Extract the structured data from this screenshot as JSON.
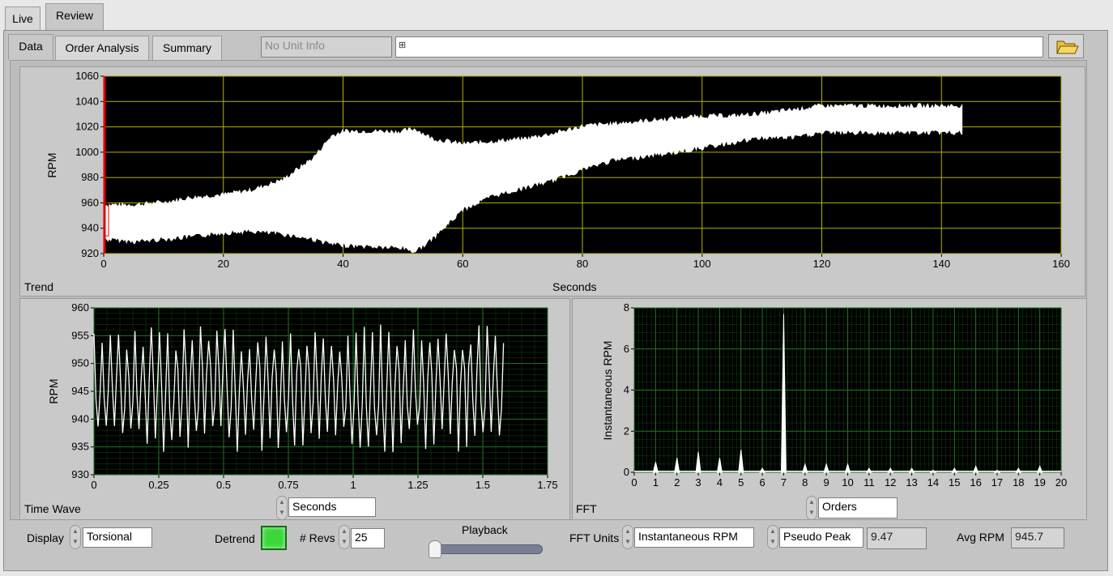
{
  "top_tabs": [
    {
      "label": "Live"
    },
    {
      "label": "Review"
    }
  ],
  "sub_tabs": [
    {
      "label": "Data"
    },
    {
      "label": "Order Analysis"
    },
    {
      "label": "Summary"
    }
  ],
  "unit_info": "No Unit Info",
  "path_value": "",
  "folder_icon": "folder-open-icon",
  "trend": {
    "caption": "Trend",
    "xlabel": "Seconds",
    "ylabel": "RPM",
    "xticks": [
      "0",
      "20",
      "40",
      "60",
      "80",
      "100",
      "120",
      "140",
      "160"
    ],
    "yticks": [
      "920",
      "940",
      "960",
      "980",
      "1000",
      "1020",
      "1040",
      "1060"
    ]
  },
  "timewave": {
    "caption": "Time Wave",
    "ylabel": "RPM",
    "xticks": [
      "0",
      "0.25",
      "0.5",
      "0.75",
      "1",
      "1.25",
      "1.5",
      "1.75"
    ],
    "yticks": [
      "930",
      "935",
      "940",
      "945",
      "950",
      "955",
      "960"
    ],
    "x_units": "Seconds"
  },
  "fft": {
    "caption": "FFT",
    "ylabel": "Instantaneous RPM",
    "xticks": [
      "0",
      "1",
      "2",
      "3",
      "4",
      "5",
      "6",
      "7",
      "8",
      "9",
      "10",
      "11",
      "12",
      "13",
      "14",
      "15",
      "16",
      "17",
      "18",
      "19",
      "20"
    ],
    "yticks": [
      "0",
      "2",
      "4",
      "6",
      "8"
    ],
    "x_units": "Orders"
  },
  "controls": {
    "display_label": "Display",
    "display_value": "Torsional",
    "detrend_label": "Detrend",
    "detrend_on": true,
    "revs_label": "# Revs",
    "revs_value": "25",
    "playback_label": "Playback",
    "fft_units_label": "FFT Units",
    "fft_units_value": "Instantaneous RPM",
    "peak_mode": "Pseudo Peak",
    "peak_value": "9.47",
    "avg_rpm_label": "Avg RPM",
    "avg_rpm_value": "945.7"
  },
  "colors": {
    "plot_bg": "#000000",
    "trend_grid": "#b4b400",
    "small_grid": "#1f7a1f",
    "trace": "#ffffff",
    "cursor": "#e00000",
    "led": "#33dd33"
  },
  "chart_data": [
    {
      "type": "area",
      "title": "",
      "xlabel": "Seconds",
      "ylabel": "RPM",
      "xlim": [
        0,
        160
      ],
      "ylim": [
        920,
        1060
      ],
      "grid": true,
      "x": [
        0,
        5,
        10,
        15,
        20,
        25,
        30,
        35,
        38,
        40,
        45,
        50,
        52,
        55,
        60,
        65,
        70,
        75,
        80,
        85,
        90,
        95,
        100,
        105,
        110,
        115,
        120,
        125,
        130,
        135,
        140,
        143.5
      ],
      "series": [
        {
          "name": "",
          "values": [
            958,
            958,
            960,
            964,
            966,
            970,
            978,
            995,
            1012,
            1016,
            1016,
            1016,
            1018,
            1010,
            1006,
            1008,
            1010,
            1014,
            1020,
            1022,
            1024,
            1026,
            1028,
            1028,
            1030,
            1033,
            1036,
            1036,
            1036,
            1036,
            1036,
            1036
          ]
        },
        {
          "name": "",
          "values": [
            932,
            930,
            932,
            934,
            937,
            938,
            936,
            932,
            928,
            927,
            926,
            925,
            922,
            932,
            955,
            966,
            972,
            978,
            987,
            994,
            997,
            1000,
            1004,
            1008,
            1012,
            1012,
            1016,
            1016,
            1016,
            1016,
            1016,
            1016
          ]
        }
      ]
    },
    {
      "type": "line",
      "title": "",
      "xlabel": "Seconds",
      "ylabel": "RPM",
      "xlim": [
        0,
        1.75
      ],
      "ylim": [
        930,
        960
      ],
      "grid": true,
      "series": [
        {
          "name": "",
          "cycles": 50,
          "duration": 1.58,
          "max": 957,
          "min": 934,
          "mean": 945.7
        }
      ]
    },
    {
      "type": "bar",
      "title": "",
      "xlabel": "",
      "ylabel": "Instantaneous RPM",
      "xlim": [
        0,
        20
      ],
      "ylim": [
        0,
        8
      ],
      "grid": true,
      "x": [
        1,
        2,
        3,
        4,
        5,
        6,
        7,
        8,
        9,
        10,
        11,
        12,
        13,
        14,
        15,
        16,
        17,
        18,
        19
      ],
      "values": [
        0.5,
        0.7,
        1.0,
        0.7,
        1.1,
        0.2,
        7.7,
        0.4,
        0.4,
        0.4,
        0.2,
        0.2,
        0.2,
        0.1,
        0.2,
        0.3,
        0.1,
        0.2,
        0.3
      ]
    }
  ]
}
